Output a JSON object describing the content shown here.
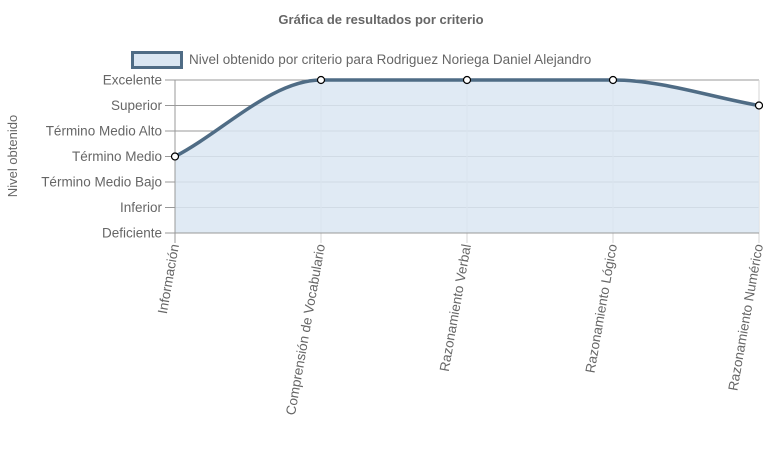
{
  "chart_data": {
    "type": "area",
    "title": "Gráfica de resultados por criterio",
    "ylabel": "Nivel obtenido",
    "xlabel": "",
    "y_levels": [
      "Deficiente",
      "Inferior",
      "Término Medio Bajo",
      "Término Medio",
      "Término Medio Alto",
      "Superior",
      "Excelente"
    ],
    "categories": [
      "Información",
      "Comprensión de Vocabulario",
      "Razonamiento Verbal",
      "Razonamiento Lógico",
      "Razonamiento Numérico"
    ],
    "series": [
      {
        "name": "Nivel obtenido por criterio para Rodriguez Noriega Daniel Alejandro",
        "values": [
          3,
          6,
          6,
          6,
          5
        ],
        "value_labels": [
          "Término Medio",
          "Excelente",
          "Excelente",
          "Excelente",
          "Superior"
        ]
      }
    ],
    "ylim": [
      0,
      6
    ],
    "grid": true,
    "legend_position": "top",
    "colors": {
      "line": "#4f6c85",
      "fill": "#dae6f2",
      "grid": "#999999",
      "axis": "#999999",
      "text": "#666666",
      "point_fill": "#ffffff",
      "point_stroke": "#000000"
    }
  }
}
